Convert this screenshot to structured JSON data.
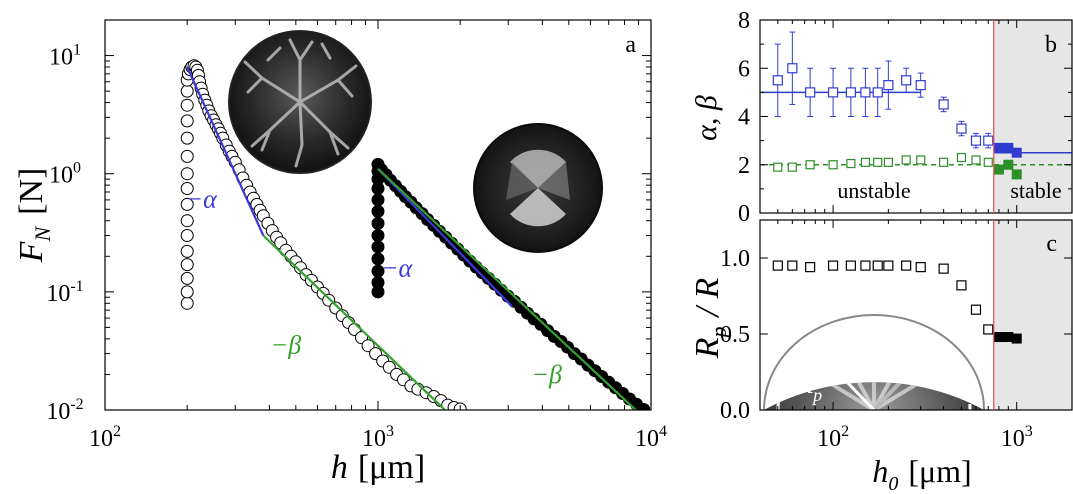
{
  "chart_data": [
    {
      "panel": "a",
      "type": "scatter",
      "x_scale": "log",
      "y_scale": "log",
      "xlim": [
        100,
        10000
      ],
      "ylim": [
        0.01,
        20
      ],
      "x_ticks": [
        {
          "value": 100,
          "base": "10",
          "exp": "2"
        },
        {
          "value": 1000,
          "base": "10",
          "exp": "3"
        },
        {
          "value": 10000,
          "base": "10",
          "exp": "4"
        }
      ],
      "y_ticks": [
        {
          "value": 0.01,
          "base": "10",
          "exp": "-2"
        },
        {
          "value": 0.1,
          "base": "10",
          "exp": "-1"
        },
        {
          "value": 1,
          "base": "10",
          "exp": "0"
        },
        {
          "value": 10,
          "base": "10",
          "exp": "1"
        }
      ],
      "ylabel_main": "F",
      "ylabel_sub": "N",
      "ylabel_unit": "[N]",
      "xlabel_main": "h",
      "xlabel_unit": "[μm]",
      "panel_label": "a",
      "series": [
        {
          "marker": "open-circle",
          "color": "#000000",
          "x": [
            200,
            200,
            200,
            200,
            200,
            200,
            200,
            200,
            200,
            200,
            200,
            200,
            200,
            200,
            200,
            200,
            202,
            205,
            208,
            212,
            215,
            218,
            220,
            222,
            225,
            228,
            232,
            236,
            240,
            245,
            250,
            255,
            260,
            265,
            270,
            278,
            285,
            292,
            300,
            310,
            320,
            330,
            340,
            350,
            360,
            370,
            380,
            395,
            410,
            425,
            440,
            460,
            480,
            500,
            520,
            545,
            570,
            600,
            630,
            660,
            700,
            740,
            780,
            820,
            870,
            920,
            980,
            1040,
            1100,
            1170,
            1240,
            1320,
            1400,
            1500,
            1600,
            1700,
            1800,
            1900,
            2000
          ],
          "y": [
            0.08,
            0.1,
            0.13,
            0.17,
            0.22,
            0.3,
            0.4,
            0.55,
            0.75,
            1.0,
            1.4,
            2.0,
            2.8,
            3.8,
            5.0,
            6.2,
            7.0,
            7.6,
            8.0,
            8.2,
            8.0,
            7.5,
            6.8,
            6.0,
            5.3,
            4.7,
            4.2,
            3.8,
            3.4,
            3.1,
            2.85,
            2.6,
            2.4,
            2.2,
            2.0,
            1.75,
            1.55,
            1.4,
            1.25,
            1.08,
            0.92,
            0.8,
            0.7,
            0.62,
            0.55,
            0.49,
            0.44,
            0.38,
            0.33,
            0.29,
            0.26,
            0.225,
            0.2,
            0.18,
            0.16,
            0.14,
            0.125,
            0.11,
            0.097,
            0.085,
            0.073,
            0.063,
            0.055,
            0.048,
            0.041,
            0.035,
            0.03,
            0.026,
            0.023,
            0.02,
            0.018,
            0.016,
            0.015,
            0.014,
            0.013,
            0.012,
            0.011,
            0.0105,
            0.0102
          ]
        },
        {
          "marker": "filled-circle",
          "color": "#000000",
          "x": [
            1000,
            1000,
            1000,
            1000,
            1000,
            1000,
            1000,
            1000,
            1000,
            1000,
            1000,
            1000,
            1000,
            1030,
            1070,
            1110,
            1160,
            1210,
            1260,
            1320,
            1380,
            1450,
            1520,
            1600,
            1680,
            1770,
            1860,
            1960,
            2060,
            2170,
            2290,
            2410,
            2540,
            2680,
            2830,
            2990,
            3160,
            3340,
            3530,
            3730,
            3950,
            4180,
            4420,
            4680,
            4950,
            5240,
            5550,
            5880,
            6230,
            6600,
            7000,
            7420,
            7870,
            8340,
            8850,
            9400
          ],
          "y": [
            0.1,
            0.12,
            0.15,
            0.19,
            0.24,
            0.3,
            0.38,
            0.48,
            0.6,
            0.75,
            0.9,
            1.05,
            1.2,
            1.08,
            0.98,
            0.88,
            0.79,
            0.71,
            0.64,
            0.575,
            0.515,
            0.46,
            0.41,
            0.365,
            0.325,
            0.29,
            0.258,
            0.23,
            0.205,
            0.182,
            0.162,
            0.145,
            0.13,
            0.116,
            0.103,
            0.092,
            0.083,
            0.074,
            0.066,
            0.059,
            0.053,
            0.047,
            0.042,
            0.038,
            0.034,
            0.03,
            0.027,
            0.024,
            0.0215,
            0.0192,
            0.0172,
            0.0154,
            0.0138,
            0.0124,
            0.0112,
            0.0101
          ]
        }
      ],
      "fits": [
        {
          "color": "#3a3ad8",
          "x": [
            200,
            380
          ],
          "y": [
            8.0,
            0.3
          ]
        },
        {
          "color": "#3a3ad8",
          "x": [
            1000,
            3100
          ],
          "y": [
            1.1,
            0.075
          ]
        },
        {
          "color": "#36a02e",
          "x": [
            380,
            1800
          ],
          "y": [
            0.3,
            0.0095
          ]
        },
        {
          "color": "#36a02e",
          "x": [
            1000,
            9000
          ],
          "y": [
            1.1,
            0.0095
          ]
        }
      ],
      "annotations": [
        {
          "text": "−α",
          "color": "#3a3ad8",
          "x": 225,
          "y": 0.52
        },
        {
          "text": "−α",
          "color": "#3a3ad8",
          "x": 1170,
          "y": 0.135
        },
        {
          "text": "−β",
          "color": "#36a02e",
          "x": 460,
          "y": 0.03
        },
        {
          "text": "−β",
          "color": "#36a02e",
          "x": 4150,
          "y": 0.017
        }
      ],
      "insets": [
        "fingering-pattern-photo",
        "stable-contact-photo"
      ]
    },
    {
      "panel": "b",
      "type": "scatter",
      "x_scale": "log",
      "y_scale": "linear",
      "xlim": [
        40,
        2000
      ],
      "ylim": [
        0,
        8
      ],
      "y_ticks": [
        0,
        2,
        4,
        6,
        8
      ],
      "ylabel": "α, β",
      "panel_label": "b",
      "threshold_x": 750,
      "threshold_color": "#e84a4a",
      "stable_region_color": "#e6e6e6",
      "region_labels": [
        "unstable",
        "stable"
      ],
      "alpha_color": "#2f3ccf",
      "beta_color": "#2c8f27",
      "alpha_unstable": {
        "x": [
          50,
          60,
          75,
          100,
          125,
          150,
          175,
          200,
          250,
          300
        ],
        "y": [
          5.5,
          6.0,
          5.0,
          5.0,
          5.0,
          5.0,
          5.0,
          5.3,
          5.5,
          5.3
        ],
        "err": [
          1.5,
          1.5,
          1.0,
          1.0,
          1.0,
          1.0,
          1.0,
          1.0,
          0.5,
          0.5
        ]
      },
      "alpha_transition": {
        "x": [
          400,
          500,
          600,
          700
        ],
        "y": [
          4.5,
          3.5,
          3.0,
          3.0
        ],
        "err": [
          0.3,
          0.3,
          0.3,
          0.3
        ]
      },
      "alpha_stable": {
        "x": [
          800,
          900,
          1000
        ],
        "y": [
          2.7,
          2.7,
          2.5
        ]
      },
      "beta_unstable": {
        "x": [
          50,
          60,
          75,
          100,
          125,
          150,
          175,
          200,
          250,
          300,
          400,
          500,
          600,
          700
        ],
        "y": [
          1.9,
          1.9,
          2.0,
          2.0,
          2.05,
          2.1,
          2.1,
          2.1,
          2.2,
          2.2,
          2.1,
          2.3,
          2.2,
          2.1
        ]
      },
      "beta_stable": {
        "x": [
          800,
          900,
          1000
        ],
        "y": [
          1.8,
          2.0,
          1.6
        ]
      },
      "alpha_fit": [
        {
          "x": [
            40,
            300
          ],
          "y": 5.0
        },
        {
          "x": [
            750,
            2000
          ],
          "y": 2.5
        }
      ],
      "beta_fit": {
        "x": [
          40,
          2000
        ],
        "y": 2.0
      }
    },
    {
      "panel": "c",
      "type": "scatter",
      "x_scale": "log",
      "y_scale": "linear",
      "xlim": [
        40,
        2000
      ],
      "ylim": [
        0,
        1.25
      ],
      "x_ticks": [
        {
          "value": 100,
          "base": "10",
          "exp": "2"
        },
        {
          "value": 1000,
          "base": "10",
          "exp": "3"
        }
      ],
      "y_ticks": [
        {
          "value": 0,
          "text": "0.0"
        },
        {
          "value": 0.5,
          "text": "0.5"
        },
        {
          "value": 1.0,
          "text": "1.0"
        }
      ],
      "ylabel_main": "R",
      "ylabel_sub": "p",
      "ylabel_rest": "/ R",
      "xlabel_main": "h",
      "xlabel_sub": "0",
      "xlabel_unit": "[μm]",
      "panel_label": "c",
      "threshold_x": 750,
      "open_points": {
        "x": [
          50,
          60,
          75,
          100,
          125,
          150,
          175,
          200,
          250,
          300,
          400,
          500,
          600,
          700
        ],
        "y": [
          0.95,
          0.95,
          0.94,
          0.95,
          0.95,
          0.95,
          0.95,
          0.95,
          0.95,
          0.94,
          0.93,
          0.82,
          0.66,
          0.53
        ]
      },
      "filled_points": {
        "x": [
          800,
          900,
          1000
        ],
        "y": [
          0.48,
          0.48,
          0.47
        ]
      },
      "inset_labels": [
        "R",
        "p",
        "R"
      ]
    }
  ]
}
